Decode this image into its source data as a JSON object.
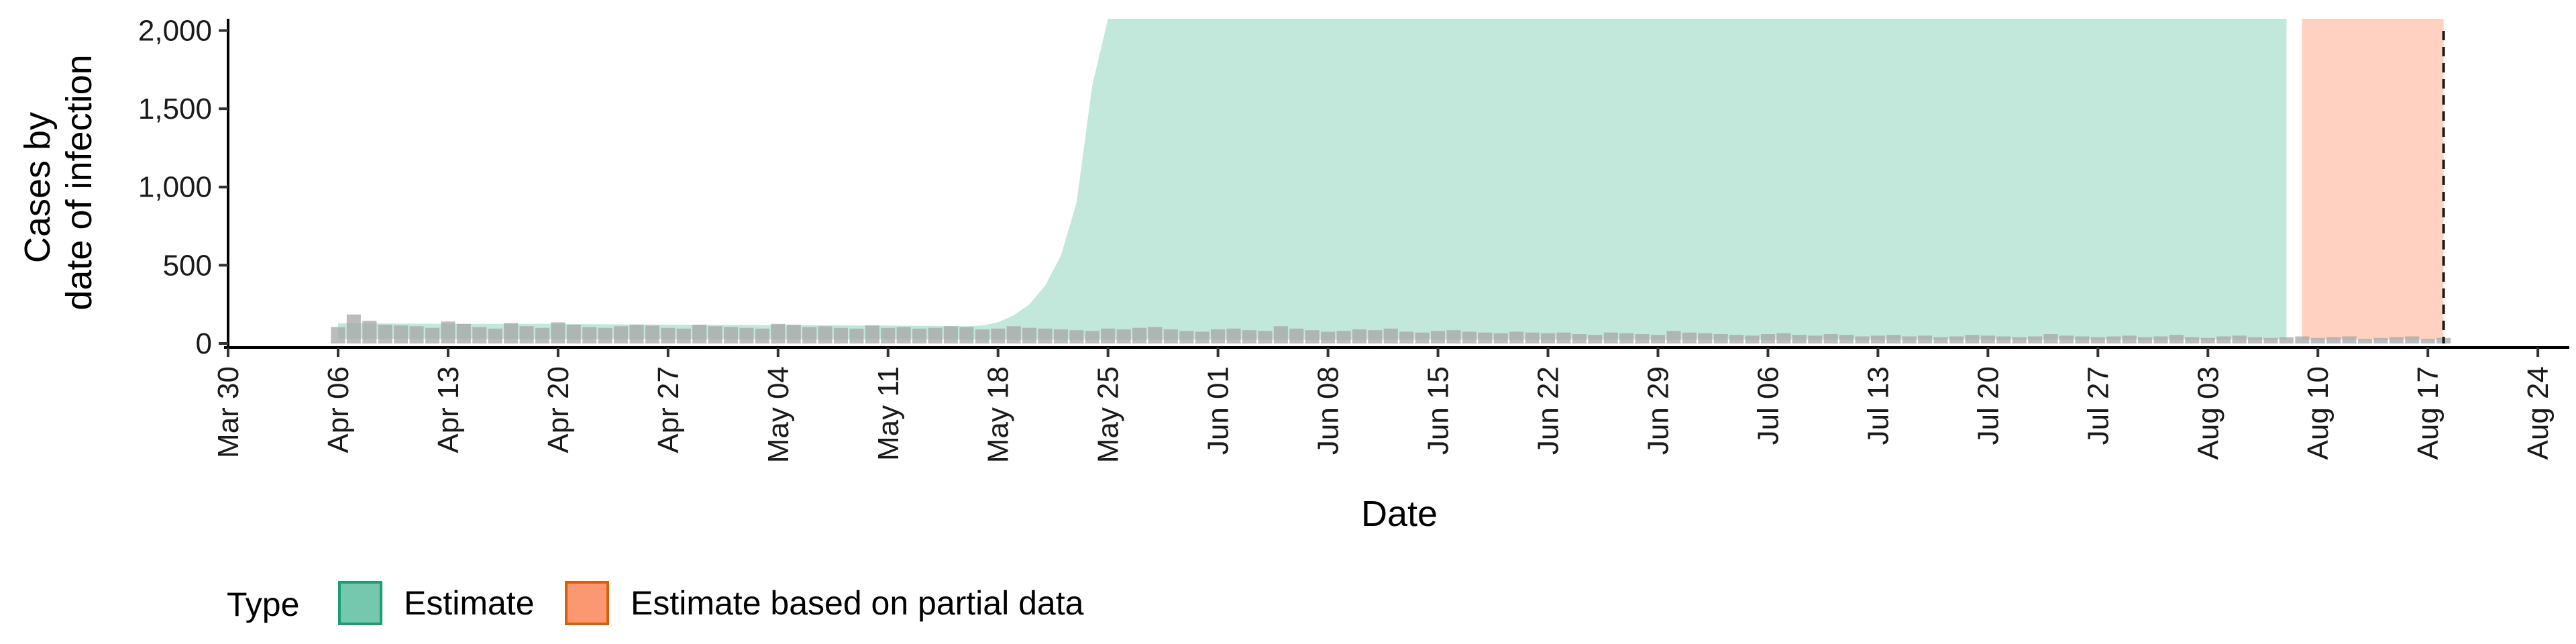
{
  "chart_data": {
    "type": "area",
    "xlabel": "Date",
    "ylabel_lines": [
      "Cases by",
      "date of infection"
    ],
    "ylim": [
      0,
      2075
    ],
    "y_ticks": [
      {
        "value": 0,
        "label": "0"
      },
      {
        "value": 500,
        "label": "500"
      },
      {
        "value": 1000,
        "label": "1,000"
      },
      {
        "value": 1500,
        "label": "1,500"
      },
      {
        "value": 2000,
        "label": "2,000"
      }
    ],
    "x_range": [
      "2020-03-30",
      "2020-08-26"
    ],
    "x_ticks": [
      {
        "date": "2020-03-30",
        "label": "Mar 30"
      },
      {
        "date": "2020-04-06",
        "label": "Apr 06"
      },
      {
        "date": "2020-04-13",
        "label": "Apr 13"
      },
      {
        "date": "2020-04-20",
        "label": "Apr 20"
      },
      {
        "date": "2020-04-27",
        "label": "Apr 27"
      },
      {
        "date": "2020-05-04",
        "label": "May 04"
      },
      {
        "date": "2020-05-11",
        "label": "May 11"
      },
      {
        "date": "2020-05-18",
        "label": "May 18"
      },
      {
        "date": "2020-05-25",
        "label": "May 25"
      },
      {
        "date": "2020-06-01",
        "label": "Jun 01"
      },
      {
        "date": "2020-06-08",
        "label": "Jun 08"
      },
      {
        "date": "2020-06-15",
        "label": "Jun 15"
      },
      {
        "date": "2020-06-22",
        "label": "Jun 22"
      },
      {
        "date": "2020-06-29",
        "label": "Jun 29"
      },
      {
        "date": "2020-07-06",
        "label": "Jul 06"
      },
      {
        "date": "2020-07-13",
        "label": "Jul 13"
      },
      {
        "date": "2020-07-20",
        "label": "Jul 20"
      },
      {
        "date": "2020-07-27",
        "label": "Jul 27"
      },
      {
        "date": "2020-08-03",
        "label": "Aug 03"
      },
      {
        "date": "2020-08-10",
        "label": "Aug 10"
      },
      {
        "date": "2020-08-17",
        "label": "Aug 17"
      },
      {
        "date": "2020-08-24",
        "label": "Aug 24"
      }
    ],
    "vline_date": "2020-08-18",
    "bars": {
      "color": "#a6a6a6",
      "dates": [
        "2020-04-06",
        "2020-04-07",
        "2020-04-08",
        "2020-04-09",
        "2020-04-10",
        "2020-04-11",
        "2020-04-12",
        "2020-04-13",
        "2020-04-14",
        "2020-04-15",
        "2020-04-16",
        "2020-04-17",
        "2020-04-18",
        "2020-04-19",
        "2020-04-20",
        "2020-04-21",
        "2020-04-22",
        "2020-04-23",
        "2020-04-24",
        "2020-04-25",
        "2020-04-26",
        "2020-04-27",
        "2020-04-28",
        "2020-04-29",
        "2020-04-30",
        "2020-05-01",
        "2020-05-02",
        "2020-05-03",
        "2020-05-04",
        "2020-05-05",
        "2020-05-06",
        "2020-05-07",
        "2020-05-08",
        "2020-05-09",
        "2020-05-10",
        "2020-05-11",
        "2020-05-12",
        "2020-05-13",
        "2020-05-14",
        "2020-05-15",
        "2020-05-16",
        "2020-05-17",
        "2020-05-18",
        "2020-05-19",
        "2020-05-20",
        "2020-05-21",
        "2020-05-22",
        "2020-05-23",
        "2020-05-24",
        "2020-05-25",
        "2020-05-26",
        "2020-05-27",
        "2020-05-28",
        "2020-05-29",
        "2020-05-30",
        "2020-05-31",
        "2020-06-01",
        "2020-06-02",
        "2020-06-03",
        "2020-06-04",
        "2020-06-05",
        "2020-06-06",
        "2020-06-07",
        "2020-06-08",
        "2020-06-09",
        "2020-06-10",
        "2020-06-11",
        "2020-06-12",
        "2020-06-13",
        "2020-06-14",
        "2020-06-15",
        "2020-06-16",
        "2020-06-17",
        "2020-06-18",
        "2020-06-19",
        "2020-06-20",
        "2020-06-21",
        "2020-06-22",
        "2020-06-23",
        "2020-06-24",
        "2020-06-25",
        "2020-06-26",
        "2020-06-27",
        "2020-06-28",
        "2020-06-29",
        "2020-06-30",
        "2020-07-01",
        "2020-07-02",
        "2020-07-03",
        "2020-07-04",
        "2020-07-05",
        "2020-07-06",
        "2020-07-07",
        "2020-07-08",
        "2020-07-09",
        "2020-07-10",
        "2020-07-11",
        "2020-07-12",
        "2020-07-13",
        "2020-07-14",
        "2020-07-15",
        "2020-07-16",
        "2020-07-17",
        "2020-07-18",
        "2020-07-19",
        "2020-07-20",
        "2020-07-21",
        "2020-07-22",
        "2020-07-23",
        "2020-07-24",
        "2020-07-25",
        "2020-07-26",
        "2020-07-27",
        "2020-07-28",
        "2020-07-29",
        "2020-07-30",
        "2020-07-31",
        "2020-08-01",
        "2020-08-02",
        "2020-08-03",
        "2020-08-04",
        "2020-08-05",
        "2020-08-06",
        "2020-08-07",
        "2020-08-08",
        "2020-08-09",
        "2020-08-10",
        "2020-08-11",
        "2020-08-12",
        "2020-08-13",
        "2020-08-14",
        "2020-08-15",
        "2020-08-16",
        "2020-08-17",
        "2020-08-18"
      ],
      "values": [
        105,
        185,
        145,
        120,
        115,
        110,
        100,
        140,
        125,
        105,
        95,
        130,
        110,
        100,
        135,
        120,
        105,
        100,
        110,
        120,
        115,
        100,
        95,
        120,
        110,
        105,
        100,
        95,
        125,
        120,
        105,
        110,
        100,
        95,
        115,
        100,
        105,
        95,
        100,
        110,
        105,
        90,
        95,
        110,
        100,
        95,
        90,
        85,
        80,
        95,
        90,
        100,
        105,
        90,
        80,
        75,
        90,
        95,
        85,
        80,
        110,
        95,
        85,
        75,
        80,
        90,
        85,
        95,
        75,
        70,
        80,
        85,
        75,
        70,
        65,
        75,
        70,
        65,
        70,
        60,
        55,
        70,
        65,
        60,
        55,
        80,
        70,
        65,
        60,
        55,
        50,
        60,
        65,
        55,
        50,
        60,
        55,
        45,
        50,
        55,
        45,
        50,
        40,
        45,
        55,
        50,
        45,
        40,
        45,
        60,
        50,
        45,
        40,
        45,
        50,
        40,
        45,
        55,
        40,
        35,
        45,
        50,
        40,
        35,
        40,
        45,
        35,
        40,
        45,
        30,
        35,
        40,
        45,
        30,
        35
      ]
    },
    "series": [
      {
        "name": "Estimate",
        "fill": "#66c2a5",
        "stroke": "#1b9e77",
        "dates": [
          "2020-04-06",
          "2020-04-13",
          "2020-04-20",
          "2020-04-27",
          "2020-05-04",
          "2020-05-11",
          "2020-05-14",
          "2020-05-16",
          "2020-05-17",
          "2020-05-18",
          "2020-05-19",
          "2020-05-20",
          "2020-05-21",
          "2020-05-22",
          "2020-05-23",
          "2020-05-24",
          "2020-05-25",
          "2020-08-08"
        ],
        "upper": [
          130,
          125,
          125,
          120,
          118,
          115,
          112,
          110,
          115,
          135,
          180,
          250,
          370,
          560,
          900,
          1650,
          2075,
          2075
        ],
        "lower": [
          30,
          30,
          28,
          28,
          27,
          26,
          26,
          26,
          26,
          26,
          25,
          25,
          25,
          25,
          25,
          25,
          25,
          25
        ]
      },
      {
        "name": "Estimate based on partial data",
        "fill": "#fc8d62",
        "stroke": "#d95f02",
        "dates": [
          "2020-08-09",
          "2020-08-18"
        ],
        "upper": [
          2075,
          2075
        ],
        "lower": [
          25,
          25
        ]
      }
    ],
    "legend": {
      "position": "bottom",
      "title": "Type",
      "items": [
        {
          "label": "Estimate",
          "fill": "#66c2a5",
          "stroke": "#1b9e77"
        },
        {
          "label": "Estimate based on partial data",
          "fill": "#fc8d62",
          "stroke": "#d95f02"
        }
      ]
    }
  }
}
